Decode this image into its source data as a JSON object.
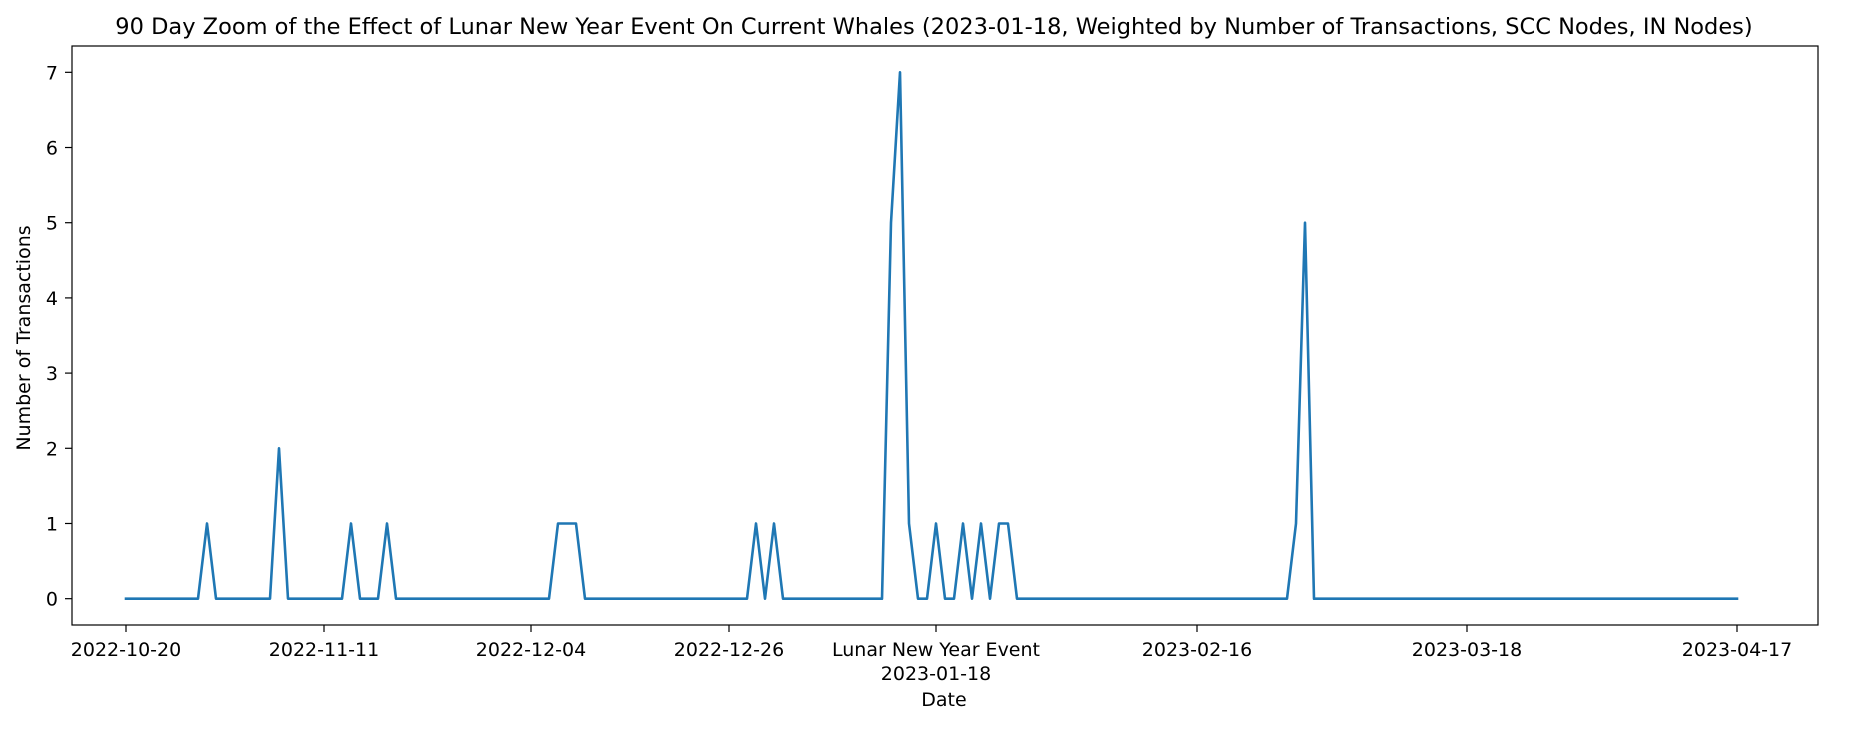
{
  "chart_data": {
    "type": "line",
    "title": "90 Day Zoom of the Effect of Lunar New Year Event On Current Whales (2023-01-18, Weighted by Number of Transactions, SCC Nodes, IN Nodes)",
    "xlabel": "Date",
    "ylabel": "Number of Transactions",
    "ylim": [
      -0.35,
      7.35
    ],
    "xlim": [
      "2022-10-14",
      "2023-04-26"
    ],
    "grid": false,
    "line_color": "#1f77b4",
    "x_ticks": [
      "2022-10-20",
      "2022-11-11",
      "2022-12-04",
      "2022-12-26",
      "2023-01-18",
      "2023-02-16",
      "2023-03-18",
      "2023-04-17"
    ],
    "x_tick_labels": [
      "2022-10-20",
      "2022-11-11",
      "2022-12-04",
      "2022-12-26",
      "Lunar New Year Event\n2023-01-18",
      "2023-02-16",
      "2023-03-18",
      "2023-04-17"
    ],
    "y_ticks": [
      0,
      1,
      2,
      3,
      4,
      5,
      6,
      7
    ],
    "series": [
      {
        "x": [
          "2022-10-20",
          "2022-10-28",
          "2022-10-29",
          "2022-10-30",
          "2022-11-05",
          "2022-11-06",
          "2022-11-07",
          "2022-11-13",
          "2022-11-14",
          "2022-11-15",
          "2022-11-17",
          "2022-11-18",
          "2022-11-19",
          "2022-12-06",
          "2022-12-07",
          "2022-12-08",
          "2022-12-09",
          "2022-12-10",
          "2022-12-28",
          "2022-12-29",
          "2022-12-30",
          "2022-12-31",
          "2023-01-01",
          "2023-01-12",
          "2023-01-13",
          "2023-01-14",
          "2023-01-15",
          "2023-01-16",
          "2023-01-17",
          "2023-01-18",
          "2023-01-19",
          "2023-01-20",
          "2023-01-21",
          "2023-01-22",
          "2023-01-23",
          "2023-01-24",
          "2023-01-25",
          "2023-01-26",
          "2023-01-27",
          "2023-02-26",
          "2023-02-27",
          "2023-02-28",
          "2023-03-01",
          "2023-04-17"
        ],
        "values": [
          0,
          0,
          1,
          0,
          0,
          2,
          0,
          0,
          1,
          0,
          0,
          1,
          0,
          0,
          1,
          1,
          1,
          0,
          0,
          1,
          0,
          1,
          0,
          0,
          5,
          7,
          1,
          0,
          0,
          1,
          0,
          0,
          1,
          0,
          1,
          0,
          1,
          1,
          0,
          0,
          1,
          5,
          0,
          0
        ]
      }
    ]
  }
}
